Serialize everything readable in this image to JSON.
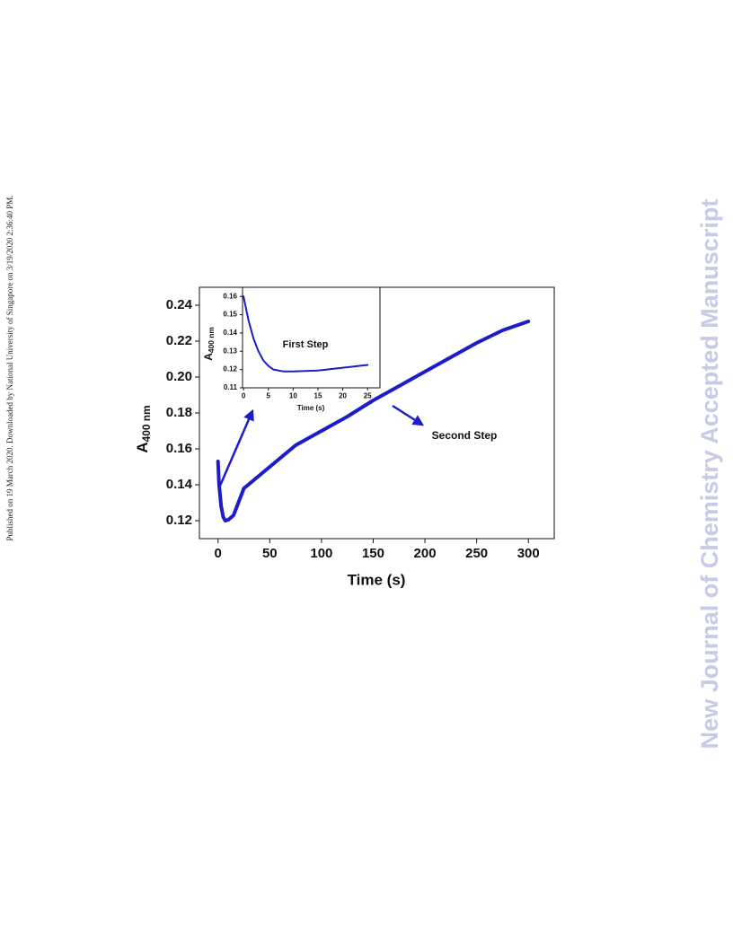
{
  "side_note": "Published on 19 March 2020. Downloaded by National University of Singapore on 3/19/2020 2:36:40 PM.",
  "watermark": "New Journal of Chemistry Accepted Manuscript",
  "chart_data": [
    {
      "type": "line",
      "xlabel": "Time (s)",
      "ylabel": "A",
      "ylabel_sub": "400 nm",
      "annotations": [
        "Second Step"
      ],
      "color": "#1c1cc8",
      "x": [
        0,
        1,
        3,
        5,
        7,
        10,
        15,
        25,
        50,
        75,
        100,
        125,
        150,
        175,
        200,
        225,
        250,
        275,
        300
      ],
      "values": [
        0.153,
        0.14,
        0.128,
        0.122,
        0.12,
        0.1205,
        0.123,
        0.138,
        0.15,
        0.162,
        0.17,
        0.178,
        0.187,
        0.195,
        0.203,
        0.211,
        0.219,
        0.226,
        0.231
      ],
      "xlim": [
        -18,
        325
      ],
      "ylim": [
        0.11,
        0.25
      ],
      "xticks": [
        0,
        50,
        100,
        150,
        200,
        250,
        300
      ],
      "yticks": [
        0.12,
        0.14,
        0.16,
        0.18,
        {
          "value": 0.2,
          "label": "0.20"
        },
        0.22,
        0.24
      ]
    },
    {
      "type": "line",
      "xlabel": "Time (s)",
      "ylabel": "A",
      "ylabel_sub": "400 nm",
      "annotations": [
        "First Step"
      ],
      "color": "#1c1cc8",
      "x": [
        0,
        1,
        2,
        3,
        4,
        5,
        6,
        8,
        10,
        15,
        20,
        25
      ],
      "values": [
        0.16,
        0.147,
        0.137,
        0.13,
        0.125,
        0.122,
        0.12,
        0.119,
        0.119,
        0.1195,
        0.121,
        0.1225
      ],
      "xlim": [
        -0.2,
        27.5
      ],
      "ylim": [
        0.11,
        0.165
      ],
      "xticks": [
        0,
        5,
        10,
        15,
        20,
        25
      ],
      "yticks": [
        0.11,
        0.12,
        0.13,
        0.14,
        0.15,
        0.16
      ]
    }
  ]
}
